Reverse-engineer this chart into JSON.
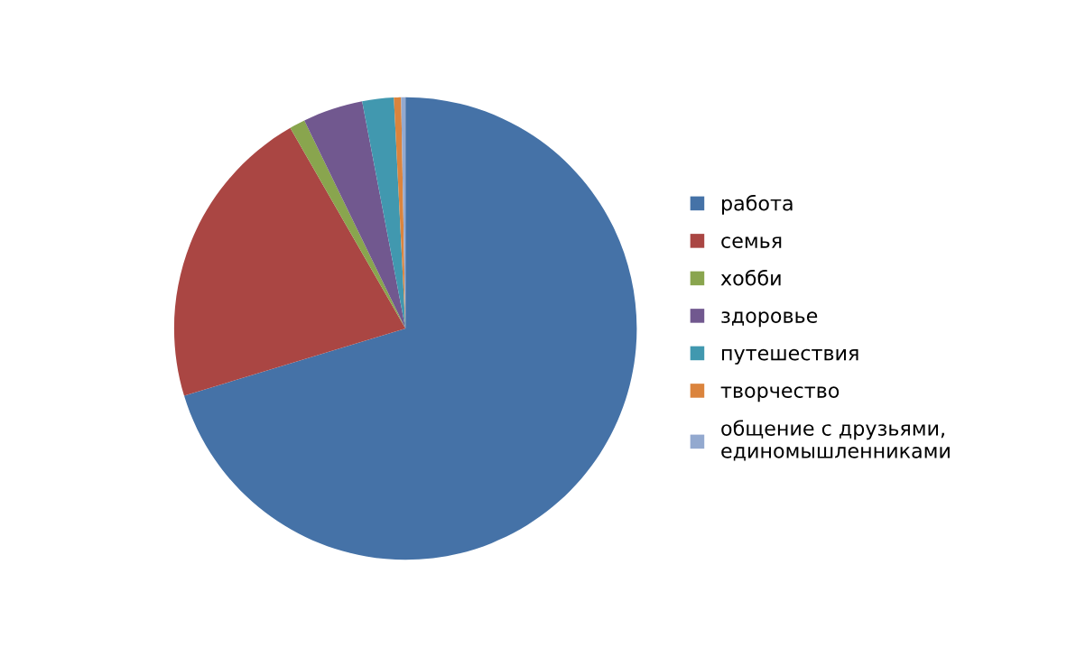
{
  "chart_data": {
    "type": "pie",
    "categories": [
      "работа",
      "семья",
      "хобби",
      "здоровье",
      "путешествия",
      "творчество",
      "общение с друзьями,\nединомышленниками"
    ],
    "values": [
      70.3,
      21.4,
      1.1,
      4.2,
      2.2,
      0.5,
      0.3
    ],
    "colors": [
      "#4572a7",
      "#aa4643",
      "#89a54e",
      "#71588f",
      "#4198af",
      "#db843d",
      "#93a9cf"
    ],
    "legend": "right"
  }
}
